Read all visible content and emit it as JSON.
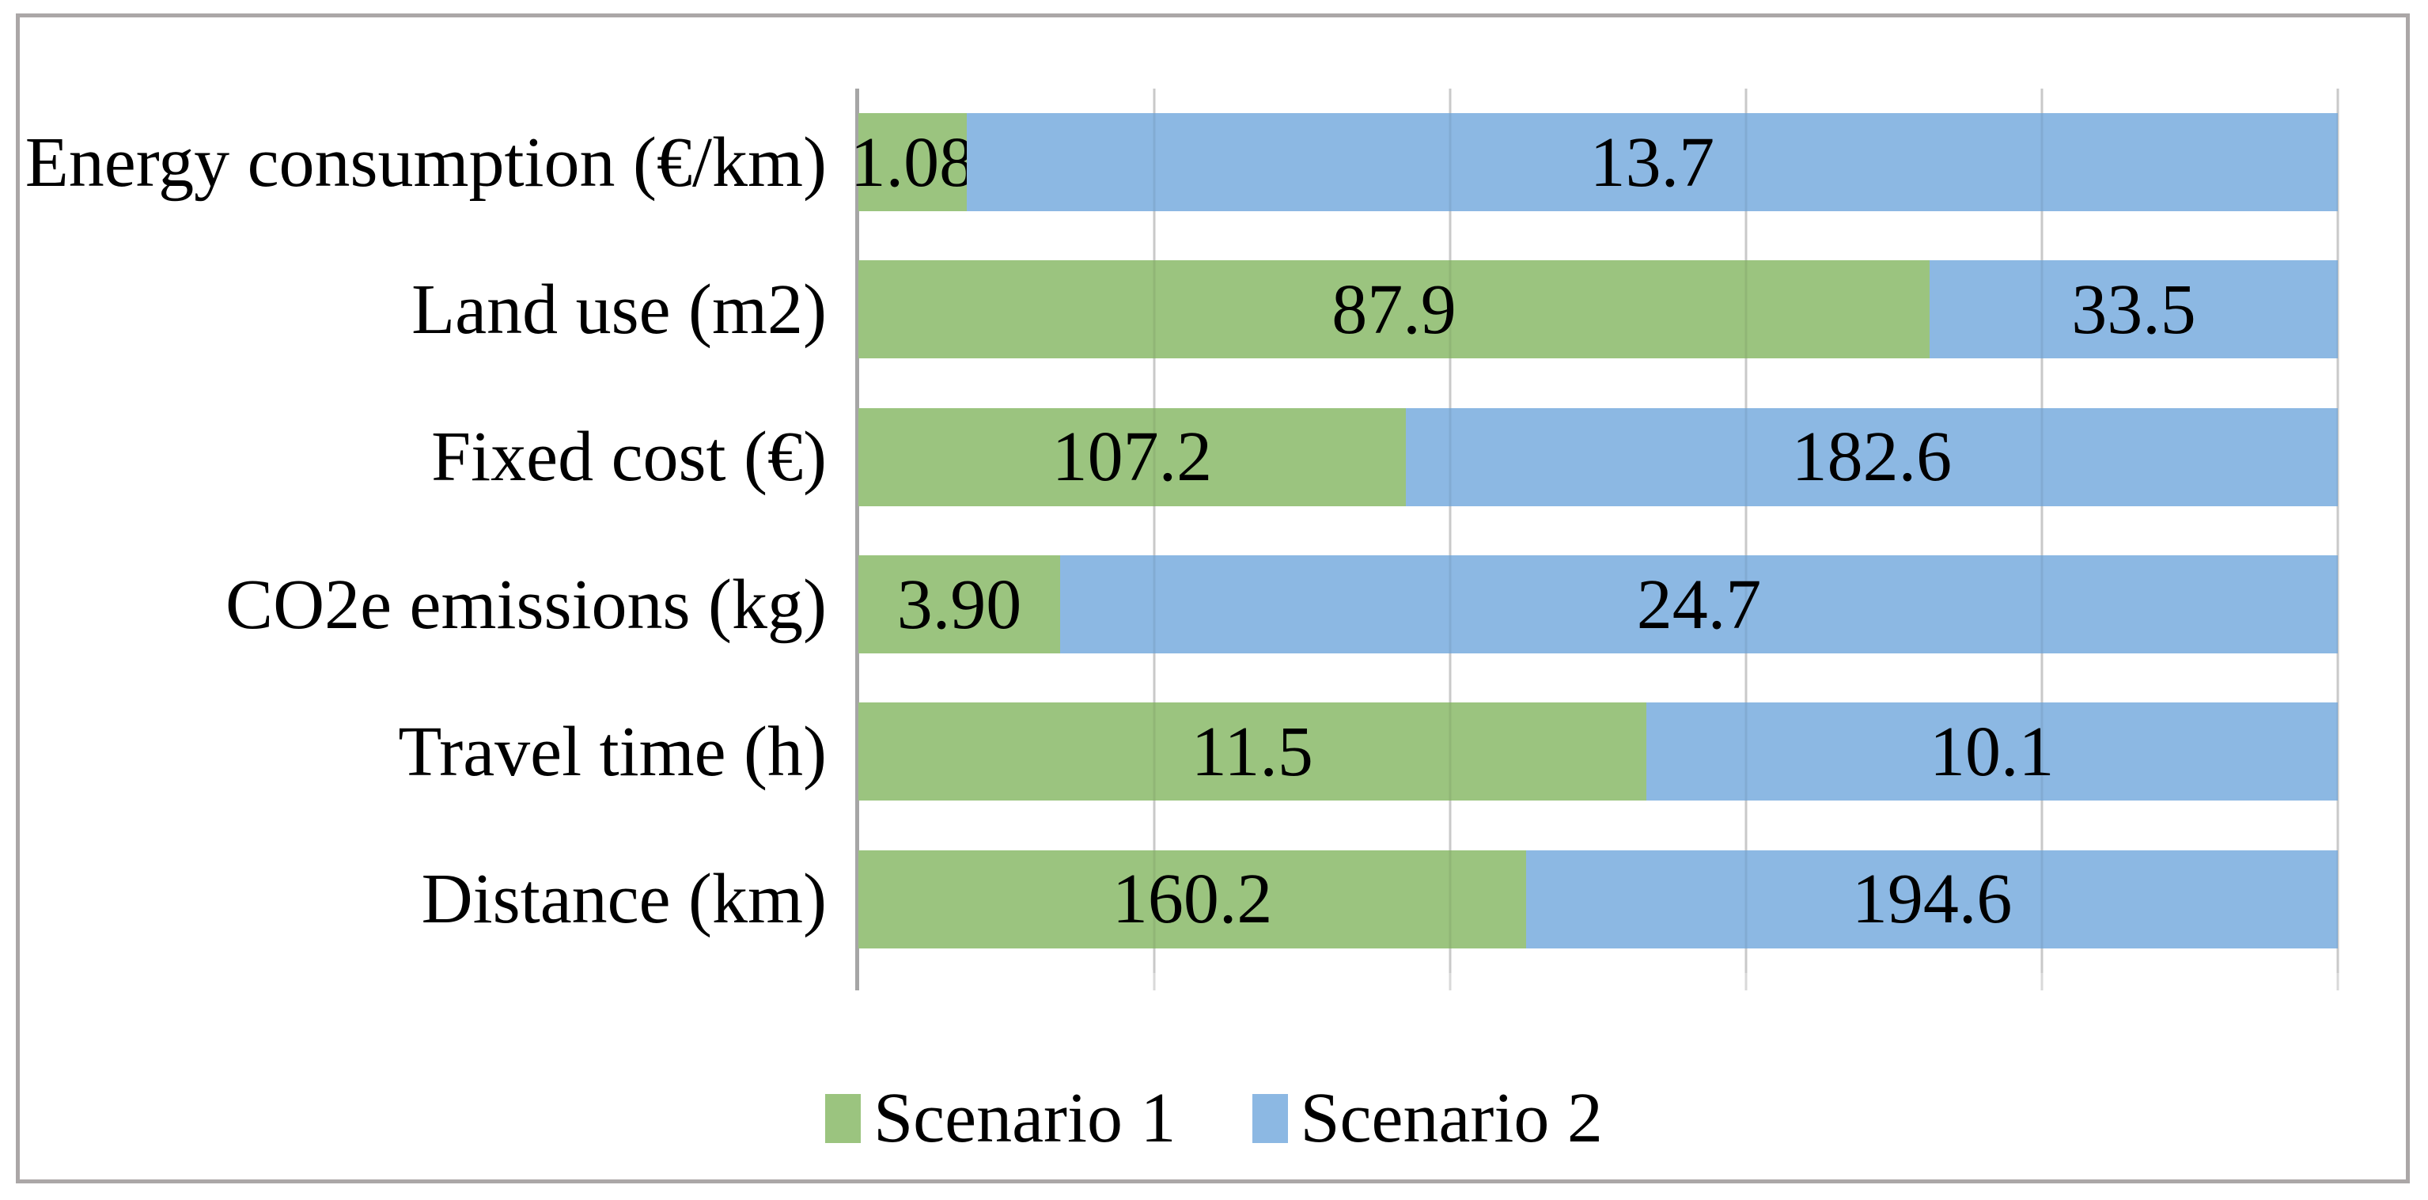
{
  "chart_data": {
    "type": "bar",
    "subtype": "100%-stacked",
    "orientation": "horizontal",
    "title": "",
    "xlabel": "",
    "ylabel": "",
    "axis_range_percent": [
      0,
      100
    ],
    "gridline_interval_percent": 20,
    "grid": "on",
    "legend_position": "bottom-center",
    "categories": [
      "Energy consumption (€/km)",
      "Land use (m2)",
      "Fixed cost (€)",
      "CO2e emissions (kg)",
      "Travel time (h)",
      "Distance (km)"
    ],
    "series": [
      {
        "name": "Scenario 1",
        "color": "#9bc47f",
        "values": [
          1.08,
          87.9,
          107.2,
          3.9,
          11.5,
          160.2
        ],
        "value_labels": [
          "1.08",
          "87.9",
          "107.2",
          "3.90",
          "11.5",
          "160.2"
        ]
      },
      {
        "name": "Scenario 2",
        "color": "#8cb8e3",
        "values": [
          13.7,
          33.5,
          182.6,
          24.7,
          10.1,
          194.6
        ],
        "value_labels": [
          "13.7",
          "33.5",
          "182.6",
          "24.7",
          "10.1",
          "194.6"
        ]
      }
    ],
    "colors": {
      "gridline": "#d9d9d9",
      "axis_line": "#a6a6a6",
      "figure_border": "#aba7a7",
      "label_text": "#000000"
    }
  }
}
